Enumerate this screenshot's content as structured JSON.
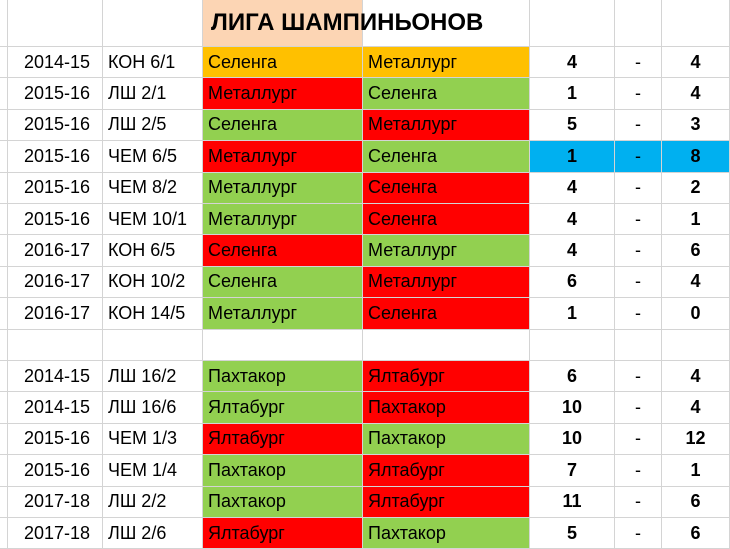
{
  "title": "ЛИГА ШАМПИНЬОНОВ",
  "title_fill": "#fcd5b4",
  "groups": [
    {
      "rows": [
        {
          "cells": [
            "2014-15",
            "КОН 6/1",
            "Селенга",
            "Металлург",
            4,
            "-",
            4
          ],
          "home_fill": "#ffc000",
          "away_fill": "#ffc000"
        },
        {
          "cells": [
            "2015-16",
            "ЛШ 2/1",
            "Металлург",
            "Селенга",
            1,
            "-",
            4
          ],
          "home_fill": "#ff0000",
          "away_fill": "#92d050"
        },
        {
          "cells": [
            "2015-16",
            "ЛШ 2/5",
            "Селенга",
            "Металлург",
            5,
            "-",
            3
          ],
          "home_fill": "#92d050",
          "away_fill": "#ff0000"
        },
        {
          "cells": [
            "2015-16",
            "ЧЕМ 6/5",
            "Металлург",
            "Селенга",
            1,
            "-",
            8
          ],
          "home_fill": "#ff0000",
          "away_fill": "#92d050",
          "score_fill": "#00b0f0"
        },
        {
          "cells": [
            "2015-16",
            "ЧЕМ 8/2",
            "Металлург",
            "Селенга",
            4,
            "-",
            2
          ],
          "home_fill": "#92d050",
          "away_fill": "#ff0000"
        },
        {
          "cells": [
            "2015-16",
            "ЧЕМ 10/1",
            "Металлург",
            "Селенга",
            4,
            "-",
            1
          ],
          "home_fill": "#92d050",
          "away_fill": "#ff0000"
        },
        {
          "cells": [
            "2016-17",
            "КОН 6/5",
            "Селенга",
            "Металлург",
            4,
            "-",
            6
          ],
          "home_fill": "#ff0000",
          "away_fill": "#92d050"
        },
        {
          "cells": [
            "2016-17",
            "КОН 10/2",
            "Селенга",
            "Металлург",
            6,
            "-",
            4
          ],
          "home_fill": "#92d050",
          "away_fill": "#ff0000"
        },
        {
          "cells": [
            "2016-17",
            "КОН 14/5",
            "Металлург",
            "Селенга",
            1,
            "-",
            0
          ],
          "home_fill": "#92d050",
          "away_fill": "#ff0000"
        }
      ]
    },
    {
      "rows": [
        {
          "cells": [
            "2014-15",
            "ЛШ 16/2",
            "Пахтакор",
            "Ялтабург",
            6,
            "-",
            4
          ],
          "home_fill": "#92d050",
          "away_fill": "#ff0000"
        },
        {
          "cells": [
            "2014-15",
            "ЛШ 16/6",
            "Ялтабург",
            "Пахтакор",
            10,
            "-",
            4
          ],
          "home_fill": "#92d050",
          "away_fill": "#ff0000"
        },
        {
          "cells": [
            "2015-16",
            "ЧЕМ 1/3",
            "Ялтабург",
            "Пахтакор",
            10,
            "-",
            12
          ],
          "home_fill": "#ff0000",
          "away_fill": "#92d050"
        },
        {
          "cells": [
            "2015-16",
            "ЧЕМ 1/4",
            "Пахтакор",
            "Ялтабург",
            7,
            "-",
            1
          ],
          "home_fill": "#92d050",
          "away_fill": "#ff0000"
        },
        {
          "cells": [
            "2017-18",
            "ЛШ 2/2",
            "Пахтакор",
            "Ялтабург",
            11,
            "-",
            6
          ],
          "home_fill": "#92d050",
          "away_fill": "#ff0000"
        },
        {
          "cells": [
            "2017-18",
            "ЛШ 2/6",
            "Ялтабург",
            "Пахтакор",
            5,
            "-",
            6
          ],
          "home_fill": "#ff0000",
          "away_fill": "#92d050"
        }
      ]
    }
  ]
}
